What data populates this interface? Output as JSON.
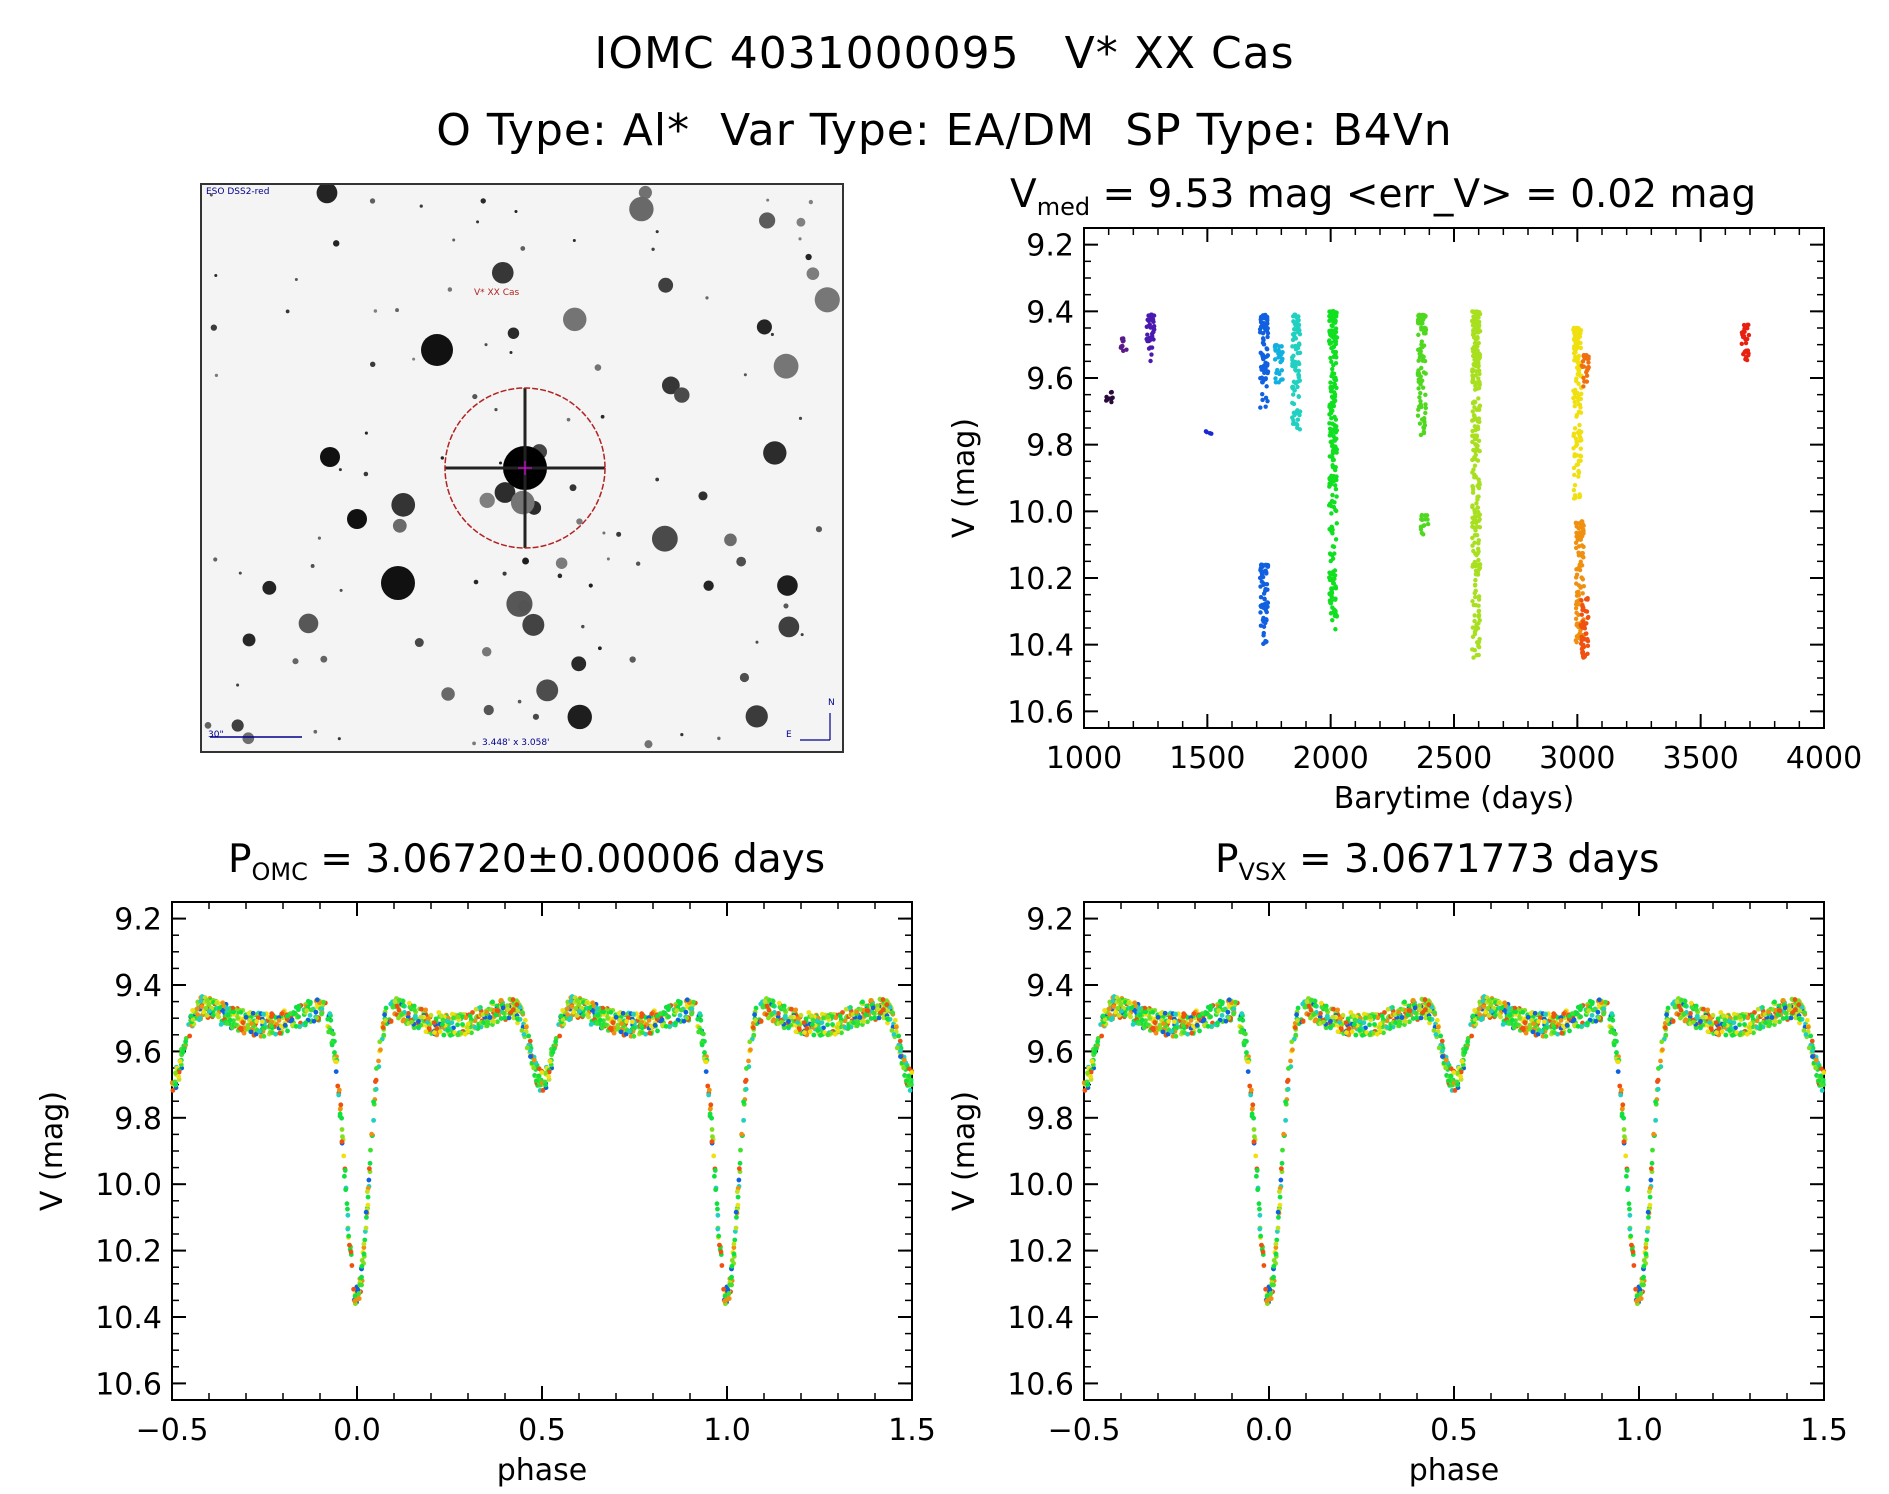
{
  "header": {
    "line1": "IOMC 4031000095   V* XX Cas",
    "line2": "O Type: Al*  Var Type: EA/DM  SP Type: B4Vn"
  },
  "finder_chart": {
    "survey_label": "ESO DSS2-red",
    "target_label": "V* XX Cas",
    "scale_label": "30\"",
    "fov_label": "3.448' x 3.058'",
    "north_label": "N",
    "east_label": "E"
  },
  "colors": {
    "circle": "#b22222",
    "axis": "#000000"
  },
  "chart_data": [
    {
      "id": "lightcurve",
      "type": "scatter",
      "title_main": "V",
      "title_sub": "med",
      "title_rest": " = 9.53 mag <err_V> = 0.02 mag",
      "xlabel": "Barytime (days)",
      "ylabel": "V (mag)",
      "xlim": [
        1000,
        4000
      ],
      "ylim": [
        10.65,
        9.15
      ],
      "xticks": [
        1000,
        1500,
        2000,
        2500,
        3000,
        3500,
        4000
      ],
      "yticks": [
        "9.2",
        "9.4",
        "9.6",
        "9.8",
        "10.0",
        "10.2",
        "10.4",
        "10.6"
      ],
      "epochs": [
        {
          "x": 1100,
          "ymin": 9.64,
          "ymax": 9.68,
          "color": "#2a0a3a"
        },
        {
          "x": 1160,
          "ymin": 9.48,
          "ymax": 9.52,
          "color": "#5a1a8a"
        },
        {
          "x": 1270,
          "ymin": 9.41,
          "ymax": 9.55,
          "color": "#4a1ab0"
        },
        {
          "x": 1500,
          "ymin": 9.76,
          "ymax": 9.77,
          "color": "#1a2ad0"
        },
        {
          "x": 1730,
          "ymin": 9.41,
          "ymax": 9.7,
          "color": "#1060e0"
        },
        {
          "x": 1730,
          "ymin": 10.16,
          "ymax": 10.4,
          "color": "#1060e0"
        },
        {
          "x": 1790,
          "ymin": 9.5,
          "ymax": 9.62,
          "color": "#10b0e0"
        },
        {
          "x": 1860,
          "ymin": 9.41,
          "ymax": 9.76,
          "color": "#20d0c0"
        },
        {
          "x": 2010,
          "ymin": 9.4,
          "ymax": 10.36,
          "color": "#10e020"
        },
        {
          "x": 2370,
          "ymin": 9.41,
          "ymax": 9.78,
          "color": "#50d820"
        },
        {
          "x": 2380,
          "ymin": 10.01,
          "ymax": 10.07,
          "color": "#50d820"
        },
        {
          "x": 2590,
          "ymin": 9.4,
          "ymax": 10.44,
          "color": "#a8e020"
        },
        {
          "x": 3000,
          "ymin": 9.45,
          "ymax": 9.97,
          "color": "#f0e010"
        },
        {
          "x": 3010,
          "ymin": 10.03,
          "ymax": 10.4,
          "color": "#f09010"
        },
        {
          "x": 3030,
          "ymin": 9.53,
          "ymax": 9.64,
          "color": "#f07010"
        },
        {
          "x": 3030,
          "ymin": 10.26,
          "ymax": 10.44,
          "color": "#f05010"
        },
        {
          "x": 3680,
          "ymin": 9.44,
          "ymax": 9.55,
          "color": "#e82010"
        }
      ]
    },
    {
      "id": "phase_omc",
      "type": "scatter",
      "title_main": "P",
      "title_sub": "OMC",
      "title_rest": " = 3.06720±0.00006 days",
      "xlabel": "phase",
      "ylabel": "V (mag)",
      "period_days": 3.0672,
      "xlim": [
        -0.5,
        1.5
      ],
      "ylim": [
        10.65,
        9.15
      ],
      "xticks": [
        "−0.5",
        "0.0",
        "0.5",
        "1.0",
        "1.5"
      ],
      "xtick_values": [
        -0.5,
        0.0,
        0.5,
        1.0,
        1.5
      ],
      "yticks": [
        "9.2",
        "9.4",
        "9.6",
        "9.8",
        "10.0",
        "10.2",
        "10.4",
        "10.6"
      ],
      "model": {
        "max_mag": 9.44,
        "primary_min_mag": 10.42,
        "primary_width": 0.045,
        "secondary_min_mag": 9.77,
        "secondary_width": 0.045
      }
    },
    {
      "id": "phase_vsx",
      "type": "scatter",
      "title_main": "P",
      "title_sub": "VSX",
      "title_rest": " = 3.0671773 days",
      "xlabel": "phase",
      "ylabel": "V (mag)",
      "period_days": 3.0671773,
      "xlim": [
        -0.5,
        1.5
      ],
      "ylim": [
        10.65,
        9.15
      ],
      "xticks": [
        "−0.5",
        "0.0",
        "0.5",
        "1.0",
        "1.5"
      ],
      "xtick_values": [
        -0.5,
        0.0,
        0.5,
        1.0,
        1.5
      ],
      "yticks": [
        "9.2",
        "9.4",
        "9.6",
        "9.8",
        "10.0",
        "10.2",
        "10.4",
        "10.6"
      ],
      "model": {
        "max_mag": 9.44,
        "primary_min_mag": 10.42,
        "primary_width": 0.045,
        "secondary_min_mag": 9.77,
        "secondary_width": 0.045
      }
    }
  ]
}
